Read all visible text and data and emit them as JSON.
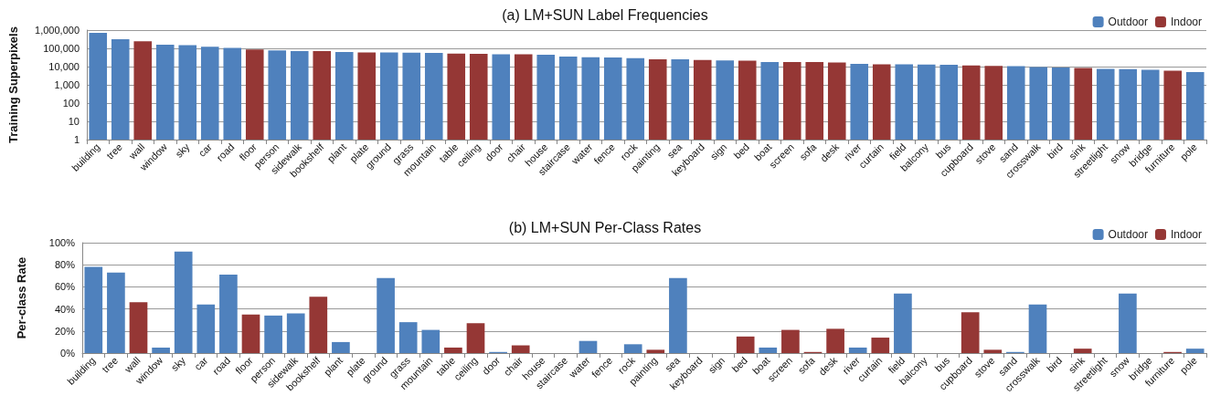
{
  "chart_data": [
    {
      "type": "bar",
      "title": "(a) LM+SUN Label Frequencies",
      "ylabel": "Training Superpixels",
      "log": "y",
      "grid": "y",
      "legend": "top right",
      "categories": [
        "building",
        "tree",
        "wall",
        "window",
        "sky",
        "car",
        "road",
        "floor",
        "person",
        "sidewalk",
        "bookshelf",
        "plant",
        "plate",
        "ground",
        "grass",
        "mountain",
        "table",
        "ceiling",
        "door",
        "chair",
        "house",
        "staircase",
        "water",
        "fence",
        "rock",
        "painting",
        "sea",
        "keyboard",
        "sign",
        "bed",
        "boat",
        "screen",
        "sofa",
        "desk",
        "river",
        "curtain",
        "field",
        "balcony",
        "bus",
        "cupboard",
        "stove",
        "sand",
        "crosswalk",
        "bird",
        "sink",
        "streetlight",
        "snow",
        "bridge",
        "furniture",
        "pole"
      ],
      "ylim": [
        1,
        1000000
      ],
      "yticks": [
        1,
        10,
        100,
        {
          "value": 1000,
          "label": "1,000"
        },
        {
          "value": 10000,
          "label": "10,000"
        },
        {
          "value": 100000,
          "label": "100,000"
        },
        {
          "value": 1000000,
          "label": "1,000,000"
        }
      ],
      "series": [
        {
          "name": "Outdoor",
          "color": "#4f81bd",
          "values": [
            700000,
            320000,
            null,
            157000,
            150000,
            122000,
            105000,
            null,
            78000,
            70000,
            null,
            63000,
            null,
            60000,
            58000,
            57000,
            null,
            null,
            48000,
            null,
            45000,
            35000,
            33000,
            32000,
            29000,
            null,
            25000,
            null,
            22000,
            null,
            18000,
            null,
            null,
            null,
            14000,
            null,
            13500,
            13000,
            12500,
            null,
            null,
            10500,
            9500,
            9000,
            null,
            7600,
            7300,
            6700,
            null,
            5000
          ]
        },
        {
          "name": "Indoor",
          "color": "#953735",
          "values": [
            null,
            null,
            245000,
            null,
            null,
            null,
            null,
            86000,
            null,
            null,
            70000,
            null,
            60000,
            null,
            null,
            null,
            52000,
            50000,
            null,
            48000,
            null,
            null,
            null,
            null,
            null,
            25000,
            null,
            23000,
            null,
            21000,
            null,
            18000,
            18000,
            17000,
            null,
            13500,
            null,
            null,
            null,
            11500,
            11000,
            null,
            null,
            null,
            8300,
            null,
            null,
            null,
            6000,
            null
          ]
        }
      ]
    },
    {
      "type": "bar",
      "title": "(b) LM+SUN Per-Class Rates",
      "ylabel": "Per-class Rate",
      "grid": "y",
      "legend": "top right",
      "categories": [
        "building",
        "tree",
        "wall",
        "window",
        "sky",
        "car",
        "road",
        "floor",
        "person",
        "sidewalk",
        "bookshelf",
        "plant",
        "plate",
        "ground",
        "grass",
        "mountain",
        "table",
        "ceiling",
        "door",
        "chair",
        "house",
        "staircase",
        "water",
        "fence",
        "rock",
        "painting",
        "sea",
        "keyboard",
        "sign",
        "bed",
        "boat",
        "screen",
        "sofa",
        "desk",
        "river",
        "curtain",
        "field",
        "balcony",
        "bus",
        "cupboard",
        "stove",
        "sand",
        "crosswalk",
        "bird",
        "sink",
        "streetlight",
        "snow",
        "bridge",
        "furniture",
        "pole"
      ],
      "ylim": [
        0,
        100
      ],
      "yticks": [
        {
          "value": 0,
          "label": "0%"
        },
        {
          "value": 20,
          "label": "20%"
        },
        {
          "value": 40,
          "label": "40%"
        },
        {
          "value": 60,
          "label": "60%"
        },
        {
          "value": 80,
          "label": "80%"
        },
        {
          "value": 100,
          "label": "100%"
        }
      ],
      "series": [
        {
          "name": "Outdoor",
          "color": "#4f81bd",
          "values": [
            78,
            73,
            null,
            5,
            92,
            44,
            71,
            null,
            34,
            36,
            null,
            10,
            null,
            68,
            28,
            21,
            null,
            null,
            1,
            null,
            0,
            0,
            11,
            0,
            8,
            null,
            68,
            null,
            0,
            null,
            5,
            null,
            null,
            null,
            5,
            null,
            54,
            0,
            0,
            null,
            null,
            1,
            44,
            0,
            null,
            0,
            54,
            0,
            null,
            4
          ]
        },
        {
          "name": "Indoor",
          "color": "#953735",
          "values": [
            null,
            null,
            46,
            null,
            null,
            null,
            null,
            35,
            null,
            null,
            51,
            null,
            0,
            null,
            null,
            null,
            5,
            27,
            null,
            7,
            null,
            null,
            null,
            null,
            null,
            3,
            null,
            0,
            null,
            15,
            null,
            21,
            1,
            22,
            null,
            14,
            null,
            null,
            null,
            37,
            3,
            null,
            null,
            null,
            4,
            null,
            null,
            null,
            1,
            null
          ]
        }
      ]
    }
  ]
}
